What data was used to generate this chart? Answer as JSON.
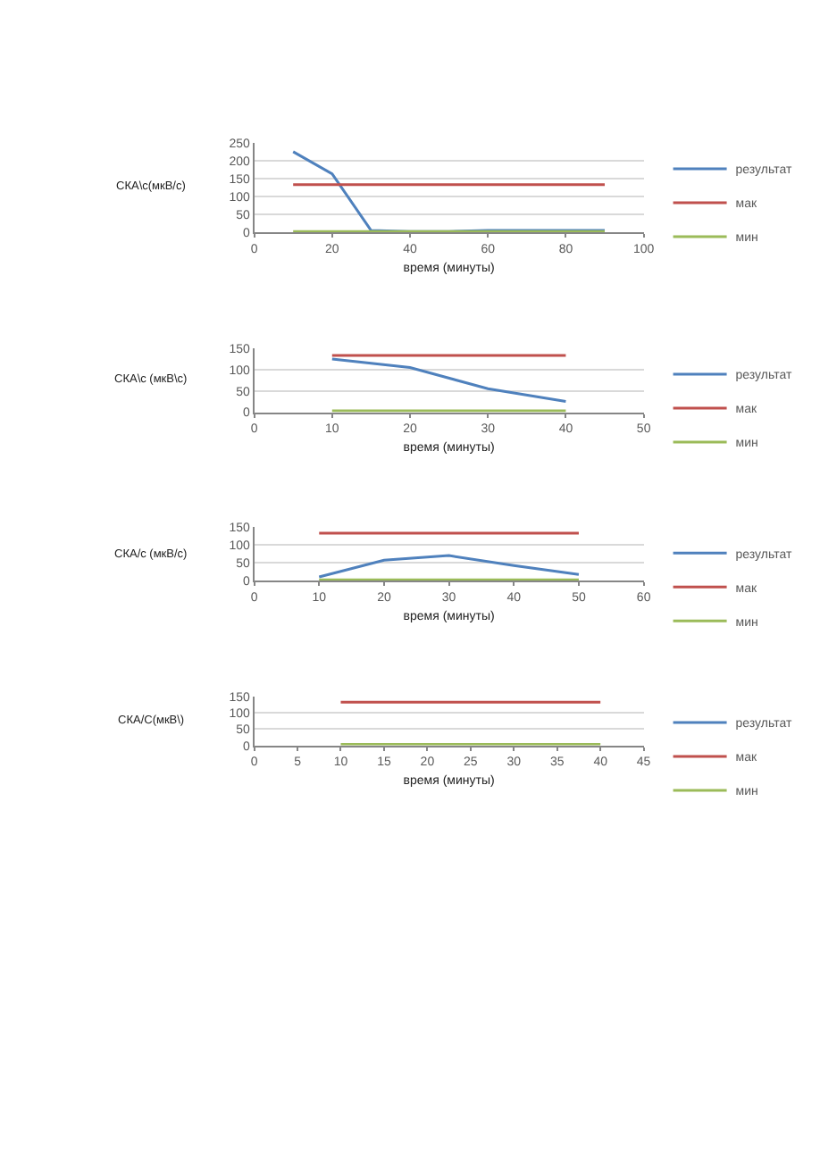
{
  "chart_data": [
    {
      "type": "line",
      "xlabel": "время (минуты)",
      "ylabel": "СКА\\с(мкВ/с)",
      "x": [
        10,
        20,
        30,
        40,
        50,
        60,
        70,
        80,
        90
      ],
      "xlim": [
        0,
        100
      ],
      "xticks": [
        0,
        20,
        40,
        60,
        80,
        100
      ],
      "ylim": [
        0,
        250
      ],
      "yticks": [
        0,
        50,
        100,
        150,
        200,
        250
      ],
      "grid": "y",
      "legend": "right",
      "series": [
        {
          "name": "результат",
          "color": "#4f81bd",
          "values": [
            225,
            163,
            5,
            2,
            2,
            5,
            5,
            5,
            5
          ]
        },
        {
          "name": "мак",
          "color": "#c0504d",
          "values": [
            133,
            133,
            133,
            133,
            133,
            133,
            133,
            133,
            133
          ]
        },
        {
          "name": "мин",
          "color": "#9bbb59",
          "values": [
            2,
            2,
            2,
            2,
            2,
            2,
            2,
            2,
            2
          ]
        }
      ]
    },
    {
      "type": "line",
      "xlabel": "время (минуты)",
      "ylabel": "СКА\\с (мкВ\\с)",
      "x": [
        10,
        20,
        30,
        40
      ],
      "xlim": [
        0,
        50
      ],
      "xticks": [
        0,
        10,
        20,
        30,
        40,
        50
      ],
      "ylim": [
        0,
        150
      ],
      "yticks": [
        0,
        50,
        100,
        150
      ],
      "grid": "y",
      "legend": "right",
      "series": [
        {
          "name": "результат",
          "color": "#4f81bd",
          "values": [
            125,
            105,
            55,
            25
          ]
        },
        {
          "name": "мак",
          "color": "#c0504d",
          "values": [
            133,
            133,
            133,
            133
          ]
        },
        {
          "name": "мин",
          "color": "#9bbb59",
          "values": [
            3,
            3,
            3,
            3
          ]
        }
      ]
    },
    {
      "type": "line",
      "xlabel": "время (минуты)",
      "ylabel": "СКА/с (мкВ/с)",
      "x": [
        10,
        20,
        30,
        40,
        50
      ],
      "xlim": [
        0,
        60
      ],
      "xticks": [
        0,
        10,
        20,
        30,
        40,
        50,
        60
      ],
      "ylim": [
        0,
        150
      ],
      "yticks": [
        0,
        50,
        100,
        150
      ],
      "grid": "y",
      "legend": "right",
      "series": [
        {
          "name": "результат",
          "color": "#4f81bd",
          "values": [
            10,
            57,
            70,
            42,
            17
          ]
        },
        {
          "name": "мак",
          "color": "#c0504d",
          "values": [
            133,
            133,
            133,
            133,
            133
          ]
        },
        {
          "name": "мин",
          "color": "#9bbb59",
          "values": [
            2,
            2,
            2,
            2,
            2
          ]
        }
      ]
    },
    {
      "type": "line",
      "xlabel": "время (минуты)",
      "ylabel": "СКА/С(мкВ\\)",
      "x": [
        10,
        20,
        30,
        40
      ],
      "xlim": [
        0,
        45
      ],
      "xticks": [
        0,
        5,
        10,
        15,
        20,
        25,
        30,
        35,
        40,
        45
      ],
      "ylim": [
        0,
        150
      ],
      "yticks": [
        0,
        50,
        100,
        150
      ],
      "grid": "y",
      "legend": "right",
      "series": [
        {
          "name": "результат",
          "color": "#4f81bd",
          "values": [
            null,
            null,
            null,
            null
          ]
        },
        {
          "name": "мак",
          "color": "#c0504d",
          "values": [
            133,
            133,
            133,
            133
          ]
        },
        {
          "name": "мин",
          "color": "#9bbb59",
          "values": [
            3,
            3,
            3,
            3
          ]
        }
      ]
    }
  ]
}
